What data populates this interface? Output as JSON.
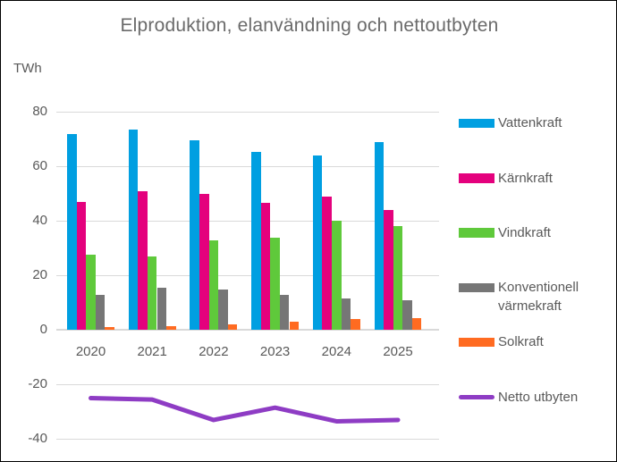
{
  "window": {
    "background_color": "#ffffff",
    "frame_border_color": "#000000"
  },
  "chart_data": {
    "type": "bar",
    "title": "Elproduktion, elanvändning och nettoutbyten",
    "unit_label": "TWh",
    "categories": [
      "2020",
      "2021",
      "2022",
      "2023",
      "2024",
      "2025"
    ],
    "series": [
      {
        "name": "Vattenkraft",
        "type": "bar",
        "color": "#009fe1",
        "values": [
          72,
          73.5,
          69.5,
          65.5,
          64,
          69
        ]
      },
      {
        "name": "Kärnkraft",
        "type": "bar",
        "color": "#e4017d",
        "values": [
          47,
          51,
          50,
          46.5,
          49,
          44
        ]
      },
      {
        "name": "Vindkraft",
        "type": "bar",
        "color": "#5fc93b",
        "values": [
          27.5,
          27,
          33,
          34,
          40,
          38
        ]
      },
      {
        "name": "Konventionell värmekraft",
        "type": "bar",
        "color": "#767676",
        "values": [
          13,
          15.5,
          15,
          13,
          11.5,
          11
        ]
      },
      {
        "name": "Solkraft",
        "type": "bar",
        "color": "#ff6b21",
        "values": [
          1,
          1.5,
          2,
          3,
          4,
          4.5
        ]
      },
      {
        "name": "Netto utbyten",
        "type": "line",
        "color": "#8e3cc4",
        "values": [
          -25,
          -25.5,
          -33,
          -28.5,
          -33.5,
          -33
        ]
      }
    ],
    "y_axis": {
      "ticks": [
        80,
        60,
        40,
        20,
        0,
        -20,
        -40
      ],
      "min": -40,
      "max": 80,
      "gridlines": true,
      "gridline_color": "#d9d9d9"
    },
    "legend_position": "right",
    "text_color": "#595959",
    "title_color": "#6a6a6a"
  }
}
